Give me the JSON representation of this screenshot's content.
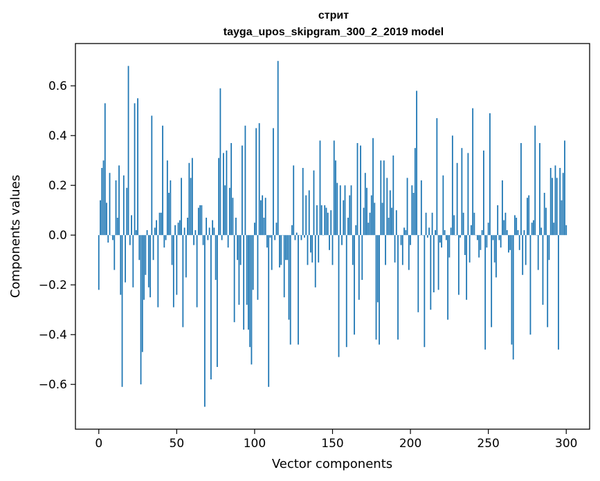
{
  "chart_data": {
    "type": "bar",
    "title": "стрит",
    "subtitle": "tayga_upos_skipgram_300_2_2019 model",
    "xlabel": "Vector components",
    "ylabel": "Components values",
    "xlim": [
      -15,
      315
    ],
    "ylim": [
      -0.78,
      0.77
    ],
    "xticks": [
      0,
      50,
      100,
      150,
      200,
      250,
      300
    ],
    "xtick_labels": [
      "0",
      "50",
      "100",
      "150",
      "200",
      "250",
      "300"
    ],
    "yticks": [
      -0.6,
      -0.4,
      -0.2,
      0.0,
      0.2,
      0.4,
      0.6
    ],
    "ytick_labels": [
      "−0.6",
      "−0.4",
      "−0.2",
      "0.0",
      "0.2",
      "0.4",
      "0.6"
    ],
    "grid": false,
    "bar_color": "#1f77b4",
    "series": [
      {
        "values": [
          -0.22,
          0.14,
          0.27,
          0.3,
          0.53,
          0.13,
          -0.03,
          0.25,
          0.0,
          -0.02,
          -0.14,
          0.22,
          0.07,
          0.28,
          -0.24,
          -0.61,
          0.24,
          -0.19,
          0.19,
          0.68,
          -0.04,
          0.08,
          -0.21,
          0.53,
          0.02,
          0.55,
          -0.1,
          -0.6,
          -0.47,
          -0.26,
          -0.16,
          0.02,
          -0.21,
          -0.25,
          0.48,
          -0.1,
          0.03,
          0.06,
          -0.29,
          0.09,
          0.09,
          0.44,
          -0.05,
          -0.02,
          0.3,
          0.17,
          0.22,
          -0.12,
          -0.29,
          0.04,
          -0.24,
          0.05,
          0.06,
          0.23,
          -0.37,
          0.03,
          -0.17,
          0.07,
          0.29,
          0.23,
          0.31,
          -0.04,
          0.02,
          -0.29,
          0.11,
          0.12,
          0.12,
          -0.04,
          -0.69,
          0.07,
          -0.02,
          0.03,
          -0.58,
          0.06,
          0.03,
          -0.18,
          -0.53,
          0.31,
          0.59,
          -0.02,
          0.33,
          0.2,
          0.34,
          -0.05,
          0.19,
          0.37,
          0.15,
          -0.35,
          0.07,
          -0.1,
          -0.28,
          -0.12,
          0.36,
          -0.38,
          0.44,
          -0.28,
          -0.38,
          -0.45,
          -0.52,
          -0.22,
          0.05,
          0.43,
          -0.26,
          0.45,
          0.14,
          0.16,
          0.07,
          0.15,
          -0.05,
          -0.61,
          -0.01,
          -0.14,
          0.43,
          -0.02,
          0.05,
          0.7,
          -0.13,
          -0.12,
          0.0,
          -0.25,
          -0.1,
          -0.1,
          -0.34,
          -0.44,
          0.04,
          0.28,
          -0.02,
          0.01,
          -0.44,
          0.0,
          -0.02,
          0.27,
          -0.01,
          0.16,
          -0.12,
          0.18,
          -0.07,
          -0.11,
          0.26,
          -0.21,
          0.12,
          -0.11,
          0.38,
          0.12,
          0.0,
          0.12,
          0.11,
          0.09,
          -0.06,
          0.1,
          -0.12,
          0.38,
          0.3,
          0.21,
          -0.49,
          0.2,
          -0.04,
          0.14,
          0.2,
          -0.45,
          0.07,
          0.16,
          0.2,
          -0.12,
          -0.4,
          0.04,
          0.37,
          -0.26,
          0.36,
          -0.18,
          0.11,
          0.25,
          0.19,
          0.05,
          0.09,
          0.16,
          0.39,
          0.13,
          -0.42,
          -0.27,
          -0.44,
          0.3,
          0.13,
          0.3,
          -0.12,
          0.23,
          0.07,
          0.18,
          0.11,
          0.32,
          -0.11,
          0.1,
          -0.42,
          0.0,
          -0.04,
          -0.12,
          0.03,
          0.02,
          0.23,
          -0.14,
          -0.04,
          0.2,
          0.17,
          0.35,
          0.58,
          -0.31,
          0.0,
          0.22,
          0.0,
          -0.45,
          0.09,
          -0.01,
          0.03,
          -0.3,
          0.09,
          -0.23,
          0.02,
          0.47,
          -0.22,
          -0.03,
          -0.05,
          0.24,
          0.02,
          -0.02,
          -0.34,
          -0.09,
          0.03,
          0.4,
          0.08,
          0.0,
          0.29,
          -0.24,
          -0.01,
          0.35,
          0.09,
          -0.08,
          -0.26,
          0.33,
          -0.11,
          0.04,
          0.51,
          0.09,
          0.0,
          -0.02,
          -0.09,
          -0.06,
          0.02,
          0.34,
          -0.46,
          -0.05,
          0.05,
          0.49,
          -0.37,
          -0.02,
          -0.11,
          -0.17,
          0.12,
          -0.02,
          -0.05,
          0.22,
          0.06,
          0.09,
          0.02,
          -0.07,
          -0.06,
          -0.44,
          -0.5,
          0.08,
          0.07,
          0.02,
          -0.06,
          0.37,
          -0.16,
          0.02,
          -0.12,
          0.15,
          0.16,
          -0.4,
          0.05,
          0.06,
          0.44,
          0.0,
          -0.14,
          0.37,
          0.03,
          -0.28,
          0.17,
          0.11,
          -0.37,
          -0.1,
          0.27,
          0.23,
          0.05,
          0.28,
          0.23,
          -0.46,
          0.27,
          0.14,
          0.25,
          0.38,
          0.04
        ]
      }
    ]
  }
}
